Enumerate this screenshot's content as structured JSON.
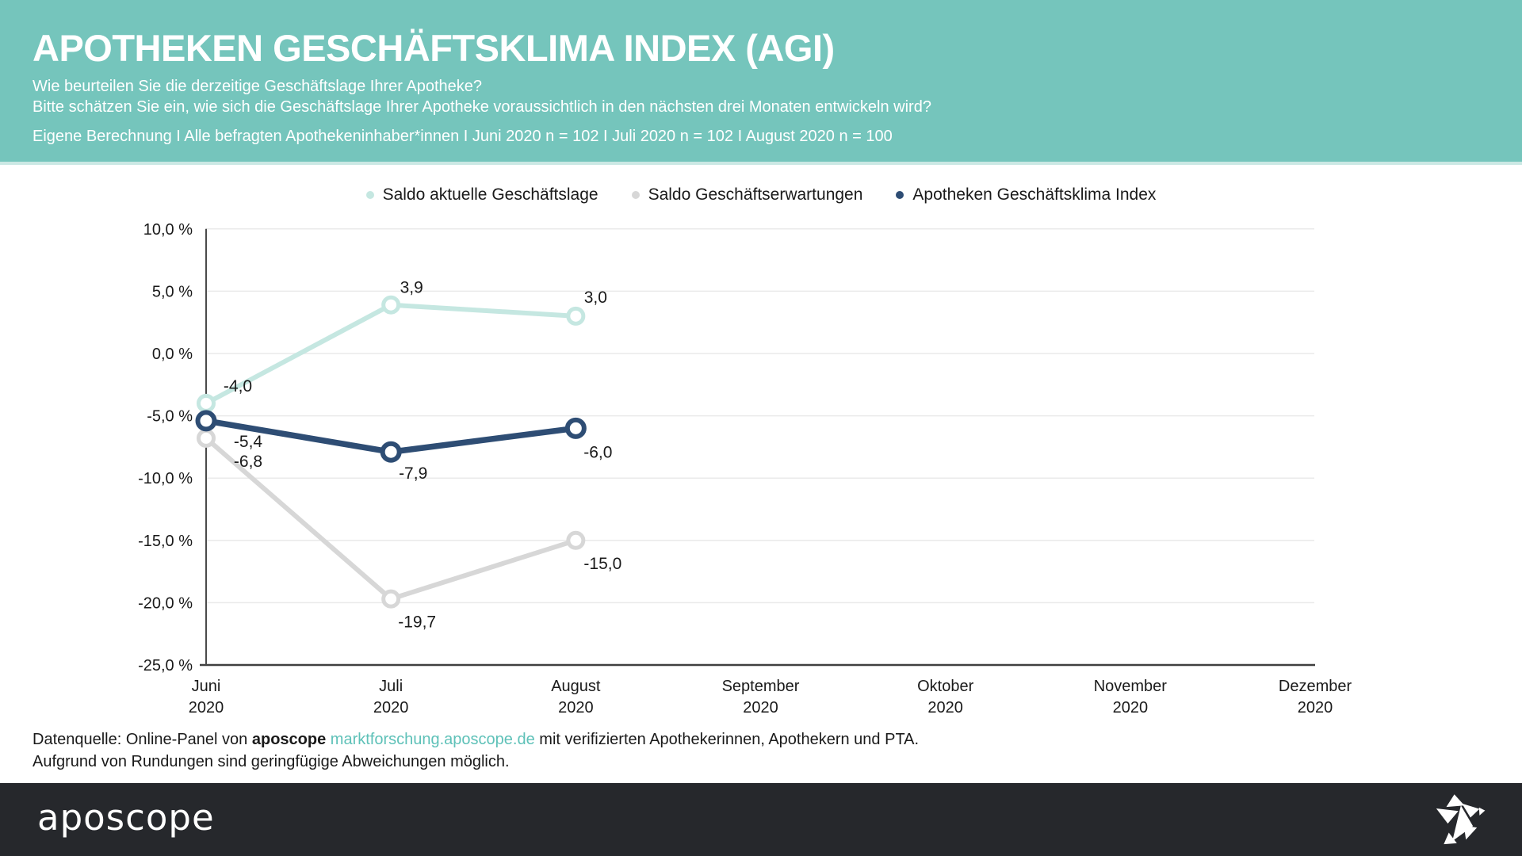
{
  "header": {
    "title": "APOTHEKEN GESCHÄFTSKLIMA INDEX (AGI)",
    "question1": "Wie beurteilen Sie die derzeitige Geschäftslage Ihrer Apotheke?",
    "question2": "Bitte schätzen Sie ein, wie sich die Geschäftslage Ihrer Apotheke voraussichtlich in den nächsten drei Monaten entwickeln wird?",
    "meta": "Eigene Berechnung I Alle befragten Apothekeninhaber*innen I Juni 2020 n = 102 I Juli 2020 n = 102 I August 2020 n = 100",
    "background": "#75c5bc"
  },
  "chart_data": {
    "type": "line",
    "title": "Apotheken Geschäftsklima Index (AGI)",
    "x_categories": [
      {
        "month": "Juni",
        "year": "2020"
      },
      {
        "month": "Juli",
        "year": "2020"
      },
      {
        "month": "August",
        "year": "2020"
      },
      {
        "month": "September",
        "year": "2020"
      },
      {
        "month": "Oktober",
        "year": "2020"
      },
      {
        "month": "November",
        "year": "2020"
      },
      {
        "month": "Dezember",
        "year": "2020"
      }
    ],
    "y_axis": {
      "unit": "%",
      "min": -25,
      "max": 10,
      "tick_values": [
        10,
        5,
        0,
        -5,
        -10,
        -15,
        -20,
        -25
      ],
      "tick_labels": [
        "10,0 %",
        "5,0 %",
        "0,0 %",
        "-5,0 %",
        "-10,0 %",
        "-15,0 %",
        "-20,0 %",
        "-25,0 %"
      ]
    },
    "grid": true,
    "legend_position": "top",
    "series": [
      {
        "name": "Saldo aktuelle Geschäftslage",
        "color": "#c5e7e1",
        "values": [
          -4.0,
          3.9,
          3.0
        ],
        "labels": [
          "-4,0",
          "3,9",
          "3,0"
        ]
      },
      {
        "name": "Saldo Geschäftserwartungen",
        "color": "#d7d7d7",
        "values": [
          -6.8,
          -19.7,
          -15.0
        ],
        "labels": [
          "-6,8",
          "-19,7",
          "-15,0"
        ]
      },
      {
        "name": "Apotheken Geschäftsklima Index",
        "color": "#2e4d74",
        "values": [
          -5.4,
          -7.9,
          -6.0
        ],
        "labels": [
          "-5,4",
          "-7,9",
          "-6,0"
        ]
      }
    ]
  },
  "footer": {
    "source_prefix": "Datenquelle: Online-Panel von",
    "source_brand": "aposcope",
    "source_link": "marktforschung.aposcope.de",
    "source_suffix": "mit verifizierten Apothekerinnen, Apothekern und PTA.",
    "note": "Aufgrund von Rundungen sind geringfügige Abweichungen möglich.",
    "logo": "aposcope",
    "bar_color": "#26282c",
    "link_color": "#5ec1b8"
  }
}
